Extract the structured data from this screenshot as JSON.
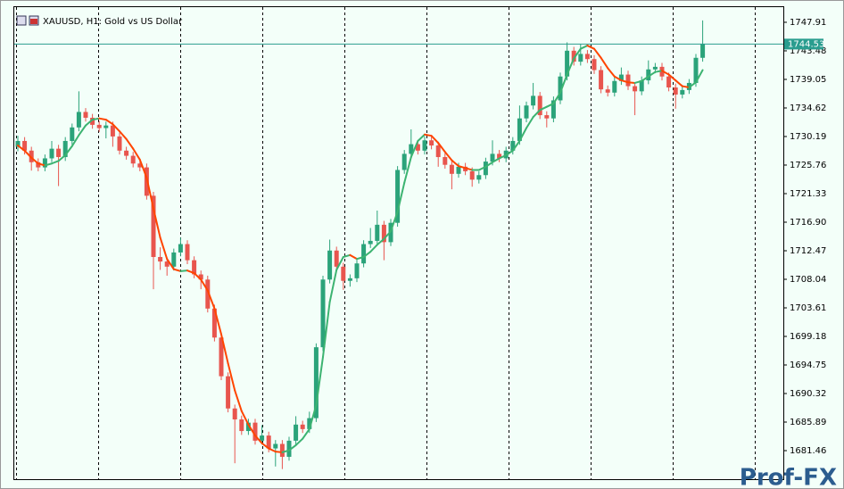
{
  "chart_data": {
    "type": "candlestick",
    "title": "XAUUSD, H1:  Gold vs US Dollar",
    "watermark": "Prof-FX",
    "open": [
      1728.6,
      1729.5,
      1728.0,
      1726.2,
      1725.4,
      1726.8,
      1728.3,
      1727.0,
      1729.5,
      1731.6,
      1734.0,
      1733.1,
      1732.0,
      1731.5,
      1731.9,
      1730.2,
      1728.0,
      1727.2,
      1726.0,
      1725.4,
      1721.0,
      1711.5,
      1710.8,
      1710.0,
      1712.2,
      1713.5,
      1711.0,
      1708.8,
      1708.0,
      1703.5,
      1699.0,
      1693.0,
      1688.0,
      1686.3,
      1684.5,
      1685.8,
      1683.0,
      1683.8,
      1681.8,
      1682.5,
      1680.5,
      1683.0,
      1685.5,
      1684.8,
      1686.5,
      1697.5,
      1708.0,
      1712.5,
      1710.0,
      1707.8,
      1708.2,
      1710.5,
      1713.5,
      1714.0,
      1716.5,
      1713.8,
      1716.8,
      1725.0,
      1727.5,
      1729.0,
      1728.0,
      1729.6,
      1728.8,
      1727.0,
      1725.8,
      1724.4,
      1725.5,
      1724.8,
      1723.5,
      1724.2,
      1726.3,
      1727.5,
      1726.8,
      1728.0,
      1729.5,
      1733.0,
      1735.0,
      1736.5,
      1733.5,
      1733.0,
      1735.8,
      1739.5,
      1743.5,
      1741.8,
      1743.0,
      1742.2,
      1740.5,
      1737.5,
      1737.0,
      1738.8,
      1739.8,
      1738.0,
      1737.2,
      1738.9,
      1740.6,
      1741.0,
      1739.5,
      1737.8,
      1736.7,
      1737.4,
      1738.5,
      1742.4
    ],
    "high": [
      1730.3,
      1730.1,
      1728.6,
      1726.8,
      1727.4,
      1729.5,
      1728.9,
      1730.1,
      1732.2,
      1737.2,
      1734.6,
      1733.7,
      1732.6,
      1732.5,
      1732.5,
      1730.8,
      1728.6,
      1727.8,
      1726.6,
      1726.0,
      1721.6,
      1713.0,
      1711.4,
      1712.8,
      1714.5,
      1714.1,
      1711.6,
      1709.4,
      1708.6,
      1704.1,
      1699.6,
      1693.6,
      1688.6,
      1686.9,
      1686.4,
      1686.4,
      1685.4,
      1684.4,
      1683.1,
      1683.1,
      1683.6,
      1686.8,
      1686.1,
      1687.5,
      1698.1,
      1708.6,
      1714.2,
      1713.1,
      1710.6,
      1708.8,
      1711.1,
      1714.1,
      1716.0,
      1718.7,
      1717.1,
      1717.4,
      1725.6,
      1728.1,
      1731.3,
      1729.6,
      1730.2,
      1730.2,
      1729.4,
      1727.6,
      1726.4,
      1726.1,
      1726.1,
      1725.4,
      1724.8,
      1726.9,
      1729.6,
      1728.1,
      1728.6,
      1730.1,
      1735.0,
      1735.6,
      1738.5,
      1737.1,
      1734.1,
      1736.4,
      1740.1,
      1744.8,
      1744.1,
      1744.5,
      1743.6,
      1742.8,
      1741.1,
      1738.1,
      1739.4,
      1740.9,
      1740.4,
      1738.6,
      1739.5,
      1742.0,
      1741.6,
      1741.6,
      1740.1,
      1738.4,
      1738.0,
      1739.1,
      1743.0,
      1748.2
    ],
    "low": [
      1727.9,
      1727.4,
      1724.9,
      1724.8,
      1724.8,
      1726.2,
      1722.5,
      1726.4,
      1728.9,
      1731.0,
      1732.5,
      1731.4,
      1730.9,
      1729.9,
      1728.6,
      1727.4,
      1726.6,
      1725.4,
      1724.8,
      1720.4,
      1706.5,
      1709.5,
      1708.6,
      1709.4,
      1711.6,
      1710.4,
      1708.2,
      1706.5,
      1702.9,
      1698.4,
      1692.4,
      1687.4,
      1679.5,
      1683.9,
      1683.9,
      1682.4,
      1682.4,
      1681.2,
      1679.0,
      1678.6,
      1679.9,
      1682.4,
      1684.2,
      1684.2,
      1685.9,
      1696.9,
      1707.4,
      1709.4,
      1706.4,
      1706.9,
      1707.6,
      1709.9,
      1712.9,
      1713.4,
      1711.0,
      1713.2,
      1716.2,
      1724.4,
      1726.9,
      1727.4,
      1727.4,
      1728.2,
      1725.5,
      1725.2,
      1722.0,
      1723.8,
      1724.2,
      1722.4,
      1722.9,
      1723.6,
      1725.7,
      1726.2,
      1726.2,
      1727.4,
      1728.9,
      1732.4,
      1734.4,
      1732.9,
      1731.6,
      1732.4,
      1735.2,
      1738.9,
      1741.2,
      1741.2,
      1741.6,
      1739.9,
      1736.9,
      1736.4,
      1736.4,
      1738.2,
      1737.4,
      1733.5,
      1736.6,
      1738.3,
      1740.0,
      1738.9,
      1737.2,
      1734.5,
      1736.1,
      1736.8,
      1737.9,
      1741.8
    ],
    "close": [
      1729.5,
      1728.0,
      1726.2,
      1725.4,
      1726.8,
      1728.3,
      1727.0,
      1729.5,
      1731.6,
      1734.0,
      1733.1,
      1732.0,
      1731.5,
      1731.9,
      1730.2,
      1728.0,
      1727.2,
      1726.0,
      1725.4,
      1721.0,
      1711.5,
      1710.8,
      1710.0,
      1712.2,
      1713.5,
      1711.0,
      1708.8,
      1708.0,
      1703.5,
      1699.0,
      1693.0,
      1688.0,
      1686.3,
      1684.5,
      1685.8,
      1683.0,
      1683.8,
      1681.8,
      1682.5,
      1680.5,
      1683.0,
      1685.5,
      1684.8,
      1686.5,
      1697.5,
      1708.0,
      1712.5,
      1710.0,
      1707.8,
      1708.2,
      1710.5,
      1713.5,
      1714.0,
      1716.5,
      1713.8,
      1716.8,
      1725.0,
      1727.5,
      1729.0,
      1728.0,
      1729.6,
      1728.8,
      1727.0,
      1725.8,
      1724.4,
      1725.5,
      1724.8,
      1723.5,
      1724.2,
      1726.3,
      1727.5,
      1726.8,
      1728.0,
      1729.5,
      1733.0,
      1735.0,
      1736.5,
      1733.5,
      1733.0,
      1735.8,
      1739.5,
      1743.5,
      1741.8,
      1743.0,
      1742.2,
      1740.5,
      1737.5,
      1737.0,
      1738.8,
      1739.8,
      1738.0,
      1737.2,
      1738.9,
      1740.6,
      1741.0,
      1739.5,
      1737.8,
      1736.7,
      1737.4,
      1738.5,
      1742.4,
      1744.53
    ],
    "up_color": "#2ba37a",
    "down_color": "#e8554e",
    "indicator": {
      "values": [
        1728.8,
        1728.0,
        1726.9,
        1726.0,
        1725.7,
        1726.0,
        1726.4,
        1727.3,
        1728.7,
        1730.4,
        1731.9,
        1732.8,
        1733.0,
        1732.8,
        1732.1,
        1731.0,
        1729.8,
        1728.3,
        1726.6,
        1723.8,
        1719.0,
        1714.5,
        1711.2,
        1709.6,
        1709.3,
        1709.4,
        1709.0,
        1708.0,
        1706.3,
        1703.5,
        1699.5,
        1695.0,
        1690.8,
        1687.6,
        1685.5,
        1683.8,
        1682.6,
        1681.8,
        1681.3,
        1681.2,
        1681.5,
        1682.3,
        1683.3,
        1684.8,
        1688.5,
        1696.0,
        1704.5,
        1709.5,
        1711.5,
        1711.8,
        1711.2,
        1711.5,
        1712.3,
        1713.4,
        1714.3,
        1715.5,
        1718.5,
        1723.0,
        1727.0,
        1729.5,
        1730.5,
        1730.3,
        1729.2,
        1727.8,
        1726.5,
        1725.6,
        1725.3,
        1725.0,
        1725.0,
        1725.5,
        1726.2,
        1726.8,
        1727.3,
        1728.0,
        1729.5,
        1731.5,
        1733.2,
        1734.3,
        1734.8,
        1735.3,
        1737.0,
        1739.8,
        1742.3,
        1743.8,
        1744.3,
        1743.8,
        1742.4,
        1740.8,
        1739.5,
        1738.9,
        1738.6,
        1738.5,
        1738.8,
        1739.5,
        1740.2,
        1740.4,
        1739.8,
        1738.9,
        1738.0,
        1737.8,
        1738.6,
        1740.5
      ],
      "up_color": "#3cb371",
      "down_color": "#ff4500"
    },
    "last_price_color": "#2a9d8f",
    "ylim": [
      1677.03,
      1750.26
    ],
    "yticks": [
      1747.91,
      1743.48,
      1739.05,
      1734.62,
      1730.19,
      1725.76,
      1721.33,
      {
        "value": 1716.9,
        "label": "1716.90"
      },
      1712.47,
      1708.04,
      1703.61,
      1699.18,
      1694.75,
      1690.32,
      1685.89,
      1681.46
    ]
  }
}
